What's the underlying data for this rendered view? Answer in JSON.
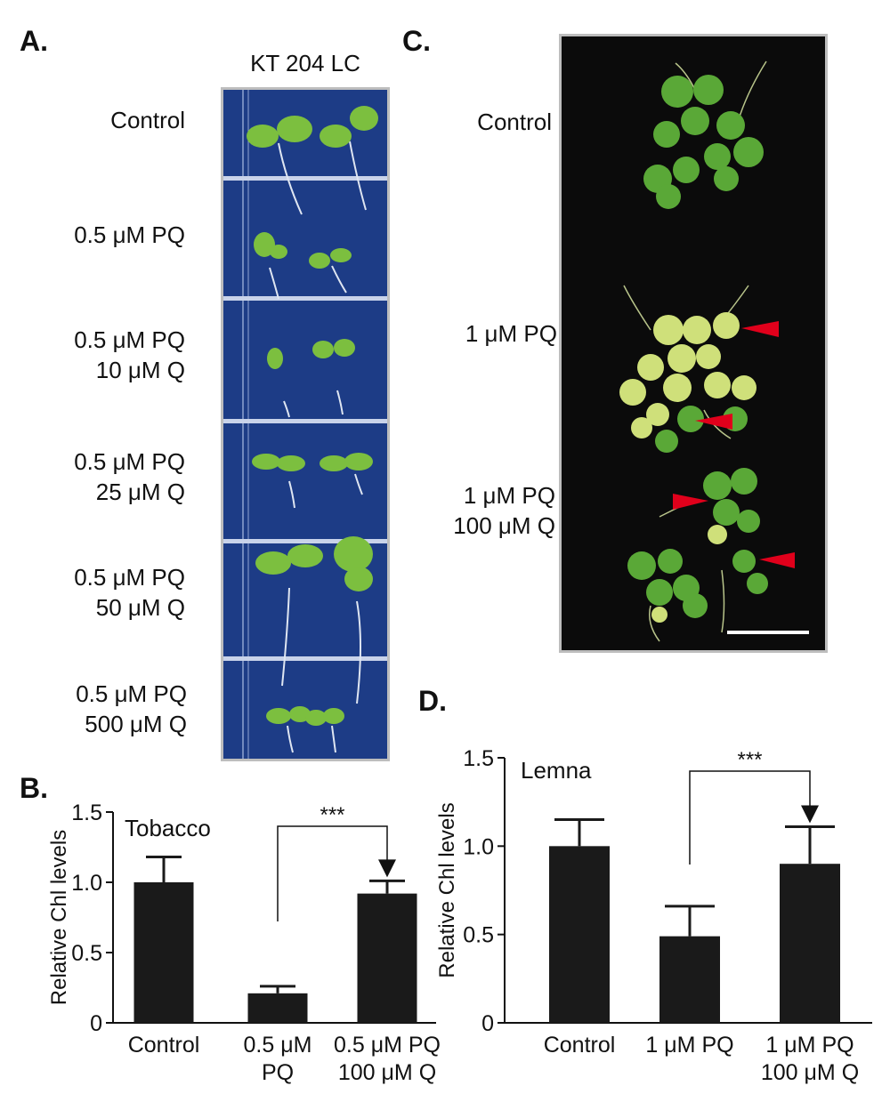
{
  "panels": {
    "a": {
      "letter": "A.",
      "title": "KT 204 LC",
      "rows": [
        {
          "lines": [
            "Control"
          ]
        },
        {
          "lines": [
            "0.5 μM PQ"
          ]
        },
        {
          "lines": [
            "0.5 μM PQ",
            "10 μM Q"
          ]
        },
        {
          "lines": [
            "0.5 μM PQ",
            "25 μM Q"
          ]
        },
        {
          "lines": [
            "0.5 μM PQ",
            "50 μM Q"
          ]
        },
        {
          "lines": [
            "0.5 μM PQ",
            "500 μM Q"
          ]
        }
      ]
    },
    "b": {
      "letter": "B."
    },
    "c": {
      "letter": "C.",
      "rows": [
        {
          "lines": [
            "Control"
          ]
        },
        {
          "lines": [
            "1 μM PQ"
          ]
        },
        {
          "lines": [
            "1 μM PQ",
            "100 μM Q"
          ]
        }
      ]
    },
    "d": {
      "letter": "D."
    }
  },
  "colors": {
    "bar": "#1a1a1a",
    "plateA": "#1d3c86",
    "plateC": "#0b0b0b",
    "arrowhead": "#e0001b"
  },
  "chart_data": [
    {
      "type": "bar",
      "panel": "B",
      "annotation": "Tobacco",
      "ylabel": "Relative Chl levels",
      "ylim": [
        0,
        1.5
      ],
      "yticks": [
        "0",
        "0.5",
        "1.0",
        "1.5"
      ],
      "categories": [
        [
          "Control"
        ],
        [
          "0.5 μM",
          "PQ"
        ],
        [
          "0.5 μM PQ",
          "100 μM Q"
        ]
      ],
      "values": [
        1.0,
        0.21,
        0.92
      ],
      "errors": [
        0.18,
        0.05,
        0.09
      ],
      "significance": {
        "from": 1,
        "to": 2,
        "label": "***"
      }
    },
    {
      "type": "bar",
      "panel": "D",
      "annotation": "Lemna",
      "ylabel": "Relative Chl levels",
      "ylim": [
        0,
        1.5
      ],
      "yticks": [
        "0",
        "0.5",
        "1.0",
        "1.5"
      ],
      "categories": [
        [
          "Control"
        ],
        [
          "1 μM PQ"
        ],
        [
          "1 μM PQ",
          "100 μM Q"
        ]
      ],
      "values": [
        1.0,
        0.49,
        0.9
      ],
      "errors": [
        0.15,
        0.17,
        0.21
      ],
      "significance": {
        "from": 1,
        "to": 2,
        "label": "***"
      }
    }
  ]
}
